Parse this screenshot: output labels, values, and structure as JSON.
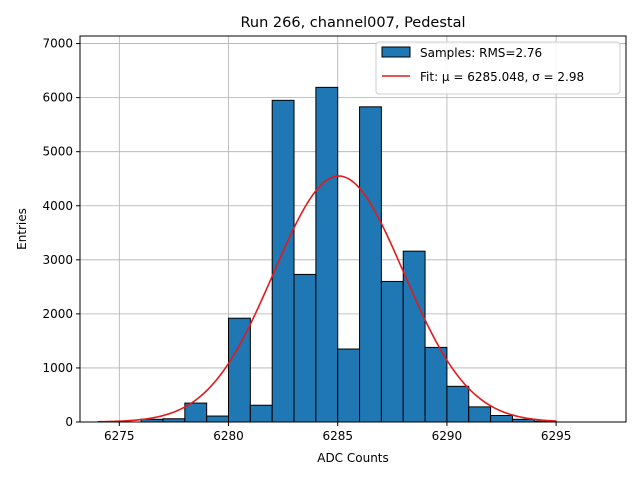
{
  "chart_data": {
    "type": "bar",
    "title": "Run 266, channel007, Pedestal",
    "xlabel": "ADC Counts",
    "ylabel": "Entries",
    "xlim": [
      6273.2,
      6298.2
    ],
    "ylim": [
      0,
      7140
    ],
    "xticks": [
      6275,
      6280,
      6285,
      6290,
      6295
    ],
    "yticks": [
      0,
      1000,
      2000,
      3000,
      4000,
      5000,
      6000,
      7000
    ],
    "grid": true,
    "legend_position": "top-right",
    "bin_width": 1,
    "bins": [
      {
        "x": 6276,
        "count": 50
      },
      {
        "x": 6277,
        "count": 60
      },
      {
        "x": 6278,
        "count": 350
      },
      {
        "x": 6279,
        "count": 110
      },
      {
        "x": 6280,
        "count": 1920
      },
      {
        "x": 6281,
        "count": 310
      },
      {
        "x": 6282,
        "count": 5950
      },
      {
        "x": 6283,
        "count": 2730
      },
      {
        "x": 6284,
        "count": 6190
      },
      {
        "x": 6285,
        "count": 1350
      },
      {
        "x": 6286,
        "count": 5830
      },
      {
        "x": 6287,
        "count": 2600
      },
      {
        "x": 6288,
        "count": 3160
      },
      {
        "x": 6289,
        "count": 1380
      },
      {
        "x": 6290,
        "count": 660
      },
      {
        "x": 6291,
        "count": 280
      },
      {
        "x": 6292,
        "count": 120
      },
      {
        "x": 6293,
        "count": 50
      },
      {
        "x": 6294,
        "count": 15
      }
    ],
    "fit": {
      "mu": 6285.048,
      "sigma": 2.98,
      "amplitude": 4550,
      "x_range": [
        6274,
        6295
      ]
    },
    "series": [
      {
        "name": "Samples: RMS=2.76",
        "type": "histogram",
        "color": "#1f77b4"
      },
      {
        "name": "Fit: μ = 6285.048, σ = 2.98",
        "type": "line",
        "color": "#e31a1c"
      }
    ]
  }
}
